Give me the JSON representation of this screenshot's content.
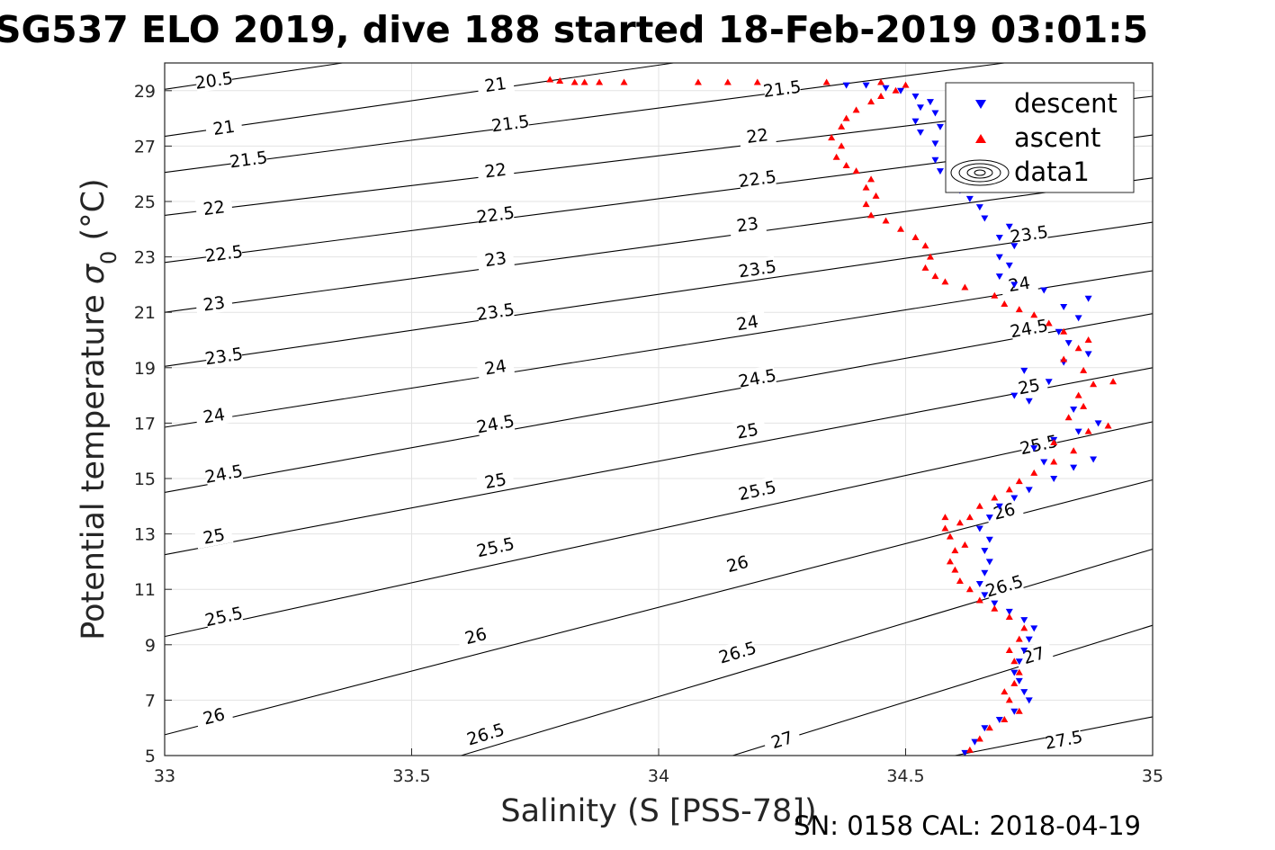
{
  "chart_data": {
    "type": "scatter",
    "title": "SG537 ELO 2019, dive 188 started 18-Feb-2019 03:01:5",
    "xlabel": "Salinity (S [PSS-78])",
    "ylabel_main": "Potential temperature ",
    "ylabel_sigma": "σ",
    "ylabel_sub": "0",
    "ylabel_unit": " (°C)",
    "footer": "SN: 0158  CAL: 2018-04-19",
    "xlim": [
      33,
      35
    ],
    "ylim": [
      5,
      30
    ],
    "x_ticks": [
      "33",
      "33.5",
      "34",
      "34.5",
      "35"
    ],
    "y_ticks": [
      "5",
      "7",
      "9",
      "11",
      "13",
      "15",
      "17",
      "19",
      "21",
      "23",
      "25",
      "27",
      "29"
    ],
    "grid": true,
    "legend_position": "top-right",
    "series": [
      {
        "name": "descent",
        "marker": "triangle-down",
        "color": "#0000ff",
        "points": [
          [
            34.62,
            5.1
          ],
          [
            34.64,
            5.5
          ],
          [
            34.66,
            6.0
          ],
          [
            34.69,
            6.3
          ],
          [
            34.72,
            6.6
          ],
          [
            34.75,
            7.0
          ],
          [
            34.74,
            7.3
          ],
          [
            34.73,
            7.7
          ],
          [
            34.72,
            8.0
          ],
          [
            34.73,
            8.4
          ],
          [
            34.74,
            8.8
          ],
          [
            34.75,
            9.2
          ],
          [
            34.76,
            9.6
          ],
          [
            34.74,
            9.9
          ],
          [
            34.71,
            10.2
          ],
          [
            34.68,
            10.5
          ],
          [
            34.66,
            10.8
          ],
          [
            34.65,
            11.2
          ],
          [
            34.66,
            11.6
          ],
          [
            34.67,
            12.0
          ],
          [
            34.66,
            12.4
          ],
          [
            34.67,
            12.8
          ],
          [
            34.65,
            13.2
          ],
          [
            34.67,
            13.6
          ],
          [
            34.69,
            14.0
          ],
          [
            34.72,
            14.3
          ],
          [
            34.75,
            14.6
          ],
          [
            34.8,
            15.0
          ],
          [
            34.84,
            15.4
          ],
          [
            34.78,
            15.6
          ],
          [
            34.88,
            15.7
          ],
          [
            34.76,
            16.1
          ],
          [
            34.8,
            16.4
          ],
          [
            34.85,
            16.7
          ],
          [
            34.89,
            17.0
          ],
          [
            34.84,
            17.5
          ],
          [
            34.75,
            17.8
          ],
          [
            34.72,
            18.0
          ],
          [
            34.79,
            18.5
          ],
          [
            34.74,
            18.9
          ],
          [
            34.82,
            19.2
          ],
          [
            34.87,
            19.5
          ],
          [
            34.83,
            19.9
          ],
          [
            34.81,
            20.3
          ],
          [
            34.85,
            20.8
          ],
          [
            34.82,
            21.2
          ],
          [
            34.87,
            21.5
          ],
          [
            34.78,
            21.8
          ],
          [
            34.72,
            22.0
          ],
          [
            34.69,
            22.3
          ],
          [
            34.71,
            22.7
          ],
          [
            34.69,
            23.0
          ],
          [
            34.72,
            23.4
          ],
          [
            34.69,
            23.7
          ],
          [
            34.71,
            24.1
          ],
          [
            34.66,
            24.4
          ],
          [
            34.65,
            24.8
          ],
          [
            34.63,
            25.1
          ],
          [
            34.61,
            25.4
          ],
          [
            34.59,
            25.8
          ],
          [
            34.57,
            26.1
          ],
          [
            34.56,
            26.5
          ],
          [
            34.59,
            26.8
          ],
          [
            34.56,
            27.1
          ],
          [
            34.53,
            27.5
          ],
          [
            34.57,
            27.7
          ],
          [
            34.52,
            27.9
          ],
          [
            34.56,
            28.2
          ],
          [
            34.53,
            28.4
          ],
          [
            34.55,
            28.6
          ],
          [
            34.52,
            28.8
          ],
          [
            34.49,
            29.0
          ],
          [
            34.46,
            29.1
          ],
          [
            34.42,
            29.2
          ],
          [
            34.38,
            29.2
          ]
        ]
      },
      {
        "name": "ascent",
        "marker": "triangle-up",
        "color": "#ff0000",
        "points": [
          [
            34.63,
            5.2
          ],
          [
            34.65,
            5.6
          ],
          [
            34.67,
            6.0
          ],
          [
            34.7,
            6.3
          ],
          [
            34.73,
            6.6
          ],
          [
            34.71,
            7.0
          ],
          [
            34.7,
            7.3
          ],
          [
            34.72,
            7.6
          ],
          [
            34.73,
            8.0
          ],
          [
            34.72,
            8.4
          ],
          [
            34.71,
            8.8
          ],
          [
            34.73,
            9.2
          ],
          [
            34.74,
            9.6
          ],
          [
            34.71,
            10.0
          ],
          [
            34.68,
            10.3
          ],
          [
            34.65,
            10.6
          ],
          [
            34.63,
            11.0
          ],
          [
            34.61,
            11.3
          ],
          [
            34.6,
            11.7
          ],
          [
            34.59,
            12.0
          ],
          [
            34.6,
            12.4
          ],
          [
            34.62,
            12.6
          ],
          [
            34.59,
            12.9
          ],
          [
            34.58,
            13.2
          ],
          [
            34.61,
            13.4
          ],
          [
            34.63,
            13.6
          ],
          [
            34.58,
            13.6
          ],
          [
            34.65,
            14.0
          ],
          [
            34.68,
            14.3
          ],
          [
            34.71,
            14.6
          ],
          [
            34.73,
            14.9
          ],
          [
            34.76,
            15.2
          ],
          [
            34.8,
            15.6
          ],
          [
            34.84,
            16.0
          ],
          [
            34.8,
            16.3
          ],
          [
            34.87,
            16.7
          ],
          [
            34.91,
            16.9
          ],
          [
            34.83,
            17.2
          ],
          [
            34.86,
            17.6
          ],
          [
            34.85,
            18.0
          ],
          [
            34.88,
            18.4
          ],
          [
            34.92,
            18.5
          ],
          [
            34.86,
            18.9
          ],
          [
            34.82,
            19.3
          ],
          [
            34.85,
            19.7
          ],
          [
            34.87,
            20.0
          ],
          [
            34.82,
            20.3
          ],
          [
            34.79,
            20.6
          ],
          [
            34.76,
            20.9
          ],
          [
            34.73,
            21.1
          ],
          [
            34.7,
            21.3
          ],
          [
            34.68,
            21.6
          ],
          [
            34.62,
            21.9
          ],
          [
            34.58,
            22.1
          ],
          [
            34.56,
            22.3
          ],
          [
            34.54,
            22.6
          ],
          [
            34.55,
            23.0
          ],
          [
            34.54,
            23.4
          ],
          [
            34.52,
            23.7
          ],
          [
            34.49,
            24.0
          ],
          [
            34.46,
            24.3
          ],
          [
            34.43,
            24.5
          ],
          [
            34.42,
            24.9
          ],
          [
            34.44,
            25.2
          ],
          [
            34.42,
            25.5
          ],
          [
            34.43,
            25.8
          ],
          [
            34.4,
            26.1
          ],
          [
            34.38,
            26.3
          ],
          [
            34.36,
            26.6
          ],
          [
            34.37,
            27.0
          ],
          [
            34.35,
            27.3
          ],
          [
            34.37,
            27.7
          ],
          [
            34.38,
            28.0
          ],
          [
            34.4,
            28.3
          ],
          [
            34.43,
            28.6
          ],
          [
            34.45,
            28.8
          ],
          [
            34.48,
            29.0
          ],
          [
            34.5,
            29.2
          ],
          [
            34.45,
            29.3
          ],
          [
            34.34,
            29.3
          ],
          [
            34.2,
            29.3
          ],
          [
            34.14,
            29.3
          ],
          [
            34.08,
            29.3
          ],
          [
            33.93,
            29.3
          ],
          [
            33.88,
            29.3
          ],
          [
            33.85,
            29.3
          ],
          [
            33.83,
            29.3
          ],
          [
            33.8,
            29.35
          ],
          [
            33.78,
            29.4
          ]
        ]
      }
    ],
    "contours": {
      "series_name": "data1",
      "color": "#000000",
      "lines": [
        {
          "label": "20.5",
          "points": [
            [
              33.0,
              29.05
            ],
            [
              33.36,
              30.0
            ]
          ],
          "labels_at": [
            [
              33.1,
              29.35
            ]
          ]
        },
        {
          "label": "21",
          "points": [
            [
              33.0,
              27.35
            ],
            [
              34.03,
              30.0
            ]
          ],
          "labels_at": [
            [
              33.12,
              27.65
            ],
            [
              33.67,
              29.2
            ]
          ]
        },
        {
          "label": "21.5",
          "points": [
            [
              33.0,
              26.05
            ],
            [
              34.7,
              30.0
            ]
          ],
          "labels_at": [
            [
              33.17,
              26.5
            ],
            [
              33.7,
              27.8
            ],
            [
              34.25,
              29.05
            ]
          ]
        },
        {
          "label": "22",
          "points": [
            [
              33.0,
              24.5
            ],
            [
              35.0,
              28.8
            ]
          ],
          "labels_at": [
            [
              33.1,
              24.75
            ],
            [
              33.67,
              26.1
            ],
            [
              34.2,
              27.35
            ]
          ]
        },
        {
          "label": "22.5",
          "points": [
            [
              33.0,
              22.8
            ],
            [
              35.0,
              27.4
            ]
          ],
          "labels_at": [
            [
              33.12,
              23.1
            ],
            [
              33.67,
              24.5
            ],
            [
              34.2,
              25.8
            ]
          ]
        },
        {
          "label": "23",
          "points": [
            [
              33.0,
              21.0
            ],
            [
              35.0,
              25.85
            ]
          ],
          "labels_at": [
            [
              33.1,
              21.3
            ],
            [
              33.67,
              22.9
            ],
            [
              34.18,
              24.15
            ]
          ]
        },
        {
          "label": "23.5",
          "points": [
            [
              33.0,
              19.05
            ],
            [
              35.0,
              24.25
            ]
          ],
          "labels_at": [
            [
              33.12,
              19.4
            ],
            [
              33.67,
              21.0
            ],
            [
              34.2,
              22.55
            ],
            [
              34.75,
              23.8
            ]
          ]
        },
        {
          "label": "24",
          "points": [
            [
              33.0,
              16.85
            ],
            [
              35.0,
              22.5
            ]
          ],
          "labels_at": [
            [
              33.1,
              17.25
            ],
            [
              33.67,
              19.0
            ],
            [
              34.18,
              20.6
            ],
            [
              34.73,
              22.0
            ]
          ]
        },
        {
          "label": "24.5",
          "points": [
            [
              33.0,
              14.5
            ],
            [
              35.0,
              20.95
            ]
          ],
          "labels_at": [
            [
              33.12,
              15.15
            ],
            [
              33.67,
              16.95
            ],
            [
              34.2,
              18.6
            ],
            [
              34.75,
              20.4
            ]
          ]
        },
        {
          "label": "25",
          "points": [
            [
              33.0,
              12.25
            ],
            [
              35.0,
              19.0
            ]
          ],
          "labels_at": [
            [
              33.1,
              12.9
            ],
            [
              33.67,
              14.9
            ],
            [
              34.18,
              16.7
            ],
            [
              34.75,
              18.3
            ]
          ]
        },
        {
          "label": "25.5",
          "points": [
            [
              33.0,
              9.3
            ],
            [
              35.0,
              17.05
            ]
          ],
          "labels_at": [
            [
              33.12,
              10.0
            ],
            [
              33.67,
              12.5
            ],
            [
              34.2,
              14.55
            ],
            [
              34.77,
              16.2
            ]
          ]
        },
        {
          "label": "26",
          "points": [
            [
              33.0,
              5.75
            ],
            [
              35.0,
              14.95
            ]
          ],
          "labels_at": [
            [
              33.1,
              6.4
            ],
            [
              33.63,
              9.3
            ],
            [
              34.16,
              11.9
            ],
            [
              34.7,
              13.8
            ]
          ]
        },
        {
          "label": "26.5",
          "points": [
            [
              33.6,
              5.0
            ],
            [
              35.0,
              12.45
            ]
          ],
          "labels_at": [
            [
              33.65,
              5.75
            ],
            [
              34.16,
              8.7
            ],
            [
              34.7,
              11.1
            ]
          ]
        },
        {
          "label": "27",
          "points": [
            [
              34.15,
              5.0
            ],
            [
              35.0,
              9.7
            ]
          ],
          "labels_at": [
            [
              34.25,
              5.55
            ],
            [
              34.76,
              8.6
            ]
          ]
        },
        {
          "label": "27.5",
          "points": [
            [
              34.6,
              5.0
            ],
            [
              35.0,
              6.4
            ]
          ],
          "labels_at": [
            [
              34.82,
              5.55
            ]
          ]
        }
      ]
    }
  }
}
